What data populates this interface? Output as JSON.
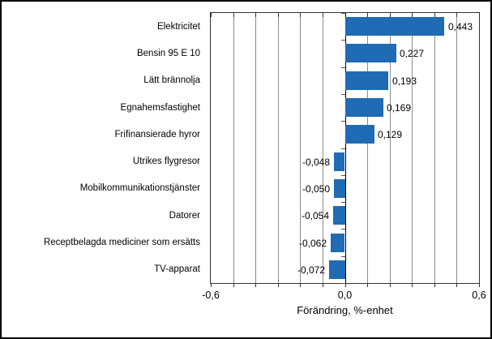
{
  "chart_data": {
    "type": "bar",
    "orientation": "horizontal",
    "title": "",
    "xlabel": "Förändring, %-enhet",
    "ylabel": "",
    "categories": [
      "Elektricitet",
      "Bensin 95 E 10",
      "Lätt brännolja",
      "Egnahemsfastighet",
      "Frifinansierade hyror",
      "Utrikes flygresor",
      "Mobilkommunikationstjänster",
      "Datorer",
      "Receptbelagda mediciner som ersätts",
      "TV-apparat"
    ],
    "values": [
      0.443,
      0.227,
      0.193,
      0.169,
      0.129,
      -0.048,
      -0.05,
      -0.054,
      -0.062,
      -0.072
    ],
    "value_labels": [
      "0,443",
      "0,227",
      "0,193",
      "0,169",
      "0,129",
      "-0,048",
      "-0,050",
      "-0,054",
      "-0,062",
      "-0,072"
    ],
    "xlim": [
      -0.6,
      0.6
    ],
    "x_ticks": [
      -0.6,
      0.0,
      0.6
    ],
    "x_tick_labels": [
      "-0,6",
      "0,0",
      "0,6"
    ],
    "gridline_step": 0.1,
    "grid": true,
    "legend": false,
    "colors": {
      "bar": "#1F6BB4",
      "gridline": "#8c8c8c",
      "axis": "#000000",
      "frame": "#333333",
      "background": "#ffffff",
      "text": "#000000"
    }
  }
}
